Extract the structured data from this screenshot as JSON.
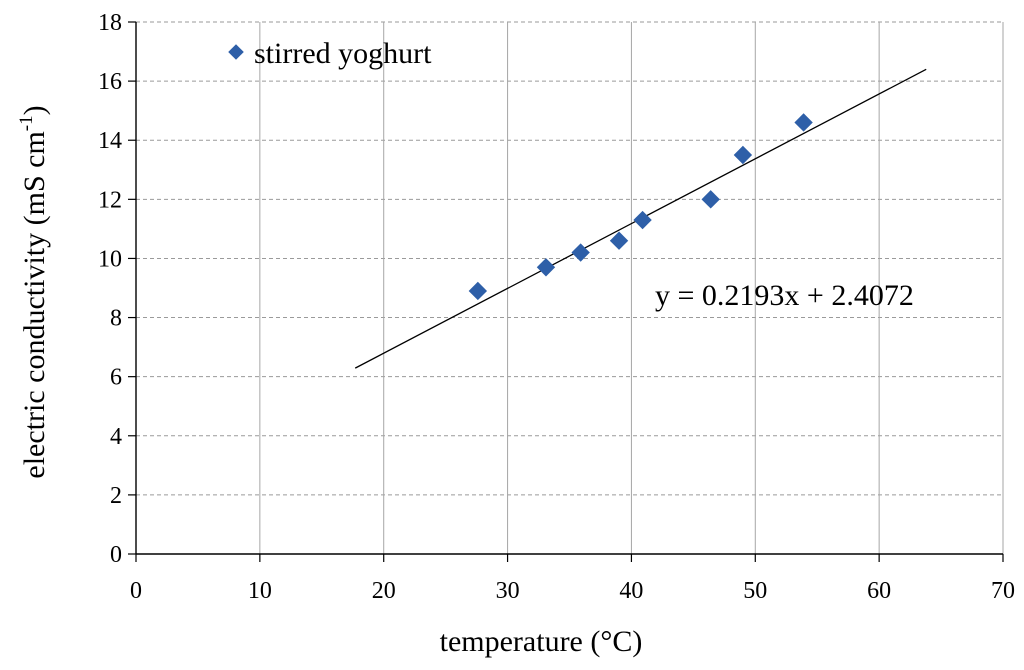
{
  "chart_data": {
    "type": "scatter",
    "title": "",
    "xlabel": "temperature  (°C)",
    "ylabel_main": "electric conductivity (mS cm",
    "ylabel_sup": "-1",
    "ylabel_tail": ")",
    "xlim": [
      0,
      70
    ],
    "ylim": [
      0,
      18
    ],
    "xticks": [
      0,
      10,
      20,
      30,
      40,
      50,
      60,
      70
    ],
    "yticks": [
      0,
      2,
      4,
      6,
      8,
      10,
      12,
      14,
      16,
      18
    ],
    "grid": {
      "x": "solid",
      "y": "dashed"
    },
    "legend_position": "top-left",
    "series": [
      {
        "name": "stirred yoghurt",
        "marker": "diamond",
        "color": "#2E5FA8",
        "x": [
          27.6,
          33.1,
          35.9,
          39.0,
          40.9,
          46.4,
          49.0,
          53.9
        ],
        "y": [
          8.9,
          9.7,
          10.2,
          10.6,
          11.3,
          12.0,
          13.5,
          14.6
        ]
      }
    ],
    "trendline": {
      "type": "linear",
      "slope": 0.2193,
      "intercept": 2.4072,
      "x_range": [
        17.7,
        63.8
      ],
      "color": "#000000",
      "label": "y = 0.2193x + 2.4072"
    }
  }
}
